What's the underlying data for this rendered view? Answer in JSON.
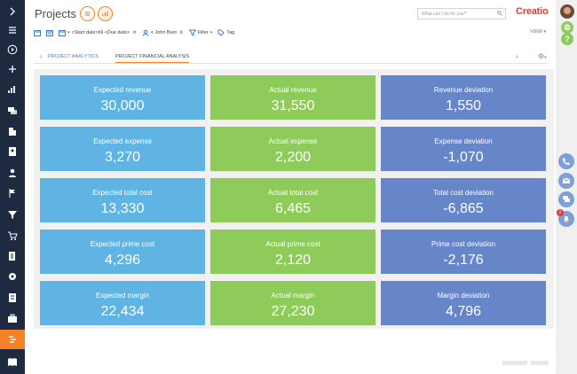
{
  "header": {
    "title": "Projects",
    "search_placeholder": "What can I do for you?",
    "logo_text": "Creatio"
  },
  "filters": {
    "dates": "<Start date>till <Due date>",
    "owner": "John Best",
    "filter_label": "Filter",
    "tag_label": "Tag",
    "view_label": "VIEW"
  },
  "tabs": {
    "analytics": "PROJECT ANALYTICS",
    "financial": "PROJECT FINANCIAL ANALYSIS"
  },
  "tiles": [
    {
      "label": "Expected revenue",
      "value": "30,000"
    },
    {
      "label": "Actual revenue",
      "value": "31,550"
    },
    {
      "label": "Revenue deviation",
      "value": "1,550"
    },
    {
      "label": "Expected expense",
      "value": "3,270"
    },
    {
      "label": "Actual expense",
      "value": "2,200"
    },
    {
      "label": "Expense deviation",
      "value": "-1,070"
    },
    {
      "label": "Expected total cost",
      "value": "13,330"
    },
    {
      "label": "Actual total cost",
      "value": "6,465"
    },
    {
      "label": "Total cost deviation",
      "value": "-6,865"
    },
    {
      "label": "Expected prime cost",
      "value": "4,296"
    },
    {
      "label": "Actual prime cost",
      "value": "2,120"
    },
    {
      "label": "Prime cost deviation",
      "value": "-2,176"
    },
    {
      "label": "Expected margin",
      "value": "22,434"
    },
    {
      "label": "Actual margin",
      "value": "27,230"
    },
    {
      "label": "Margin deviation",
      "value": "4,796"
    }
  ],
  "notifications_badge": "2",
  "colors": {
    "expected": "#5fb4e3",
    "actual": "#8ecb5a",
    "deviation": "#6786c9",
    "accent": "#f58025",
    "sidebar": "#1d2a3f"
  }
}
